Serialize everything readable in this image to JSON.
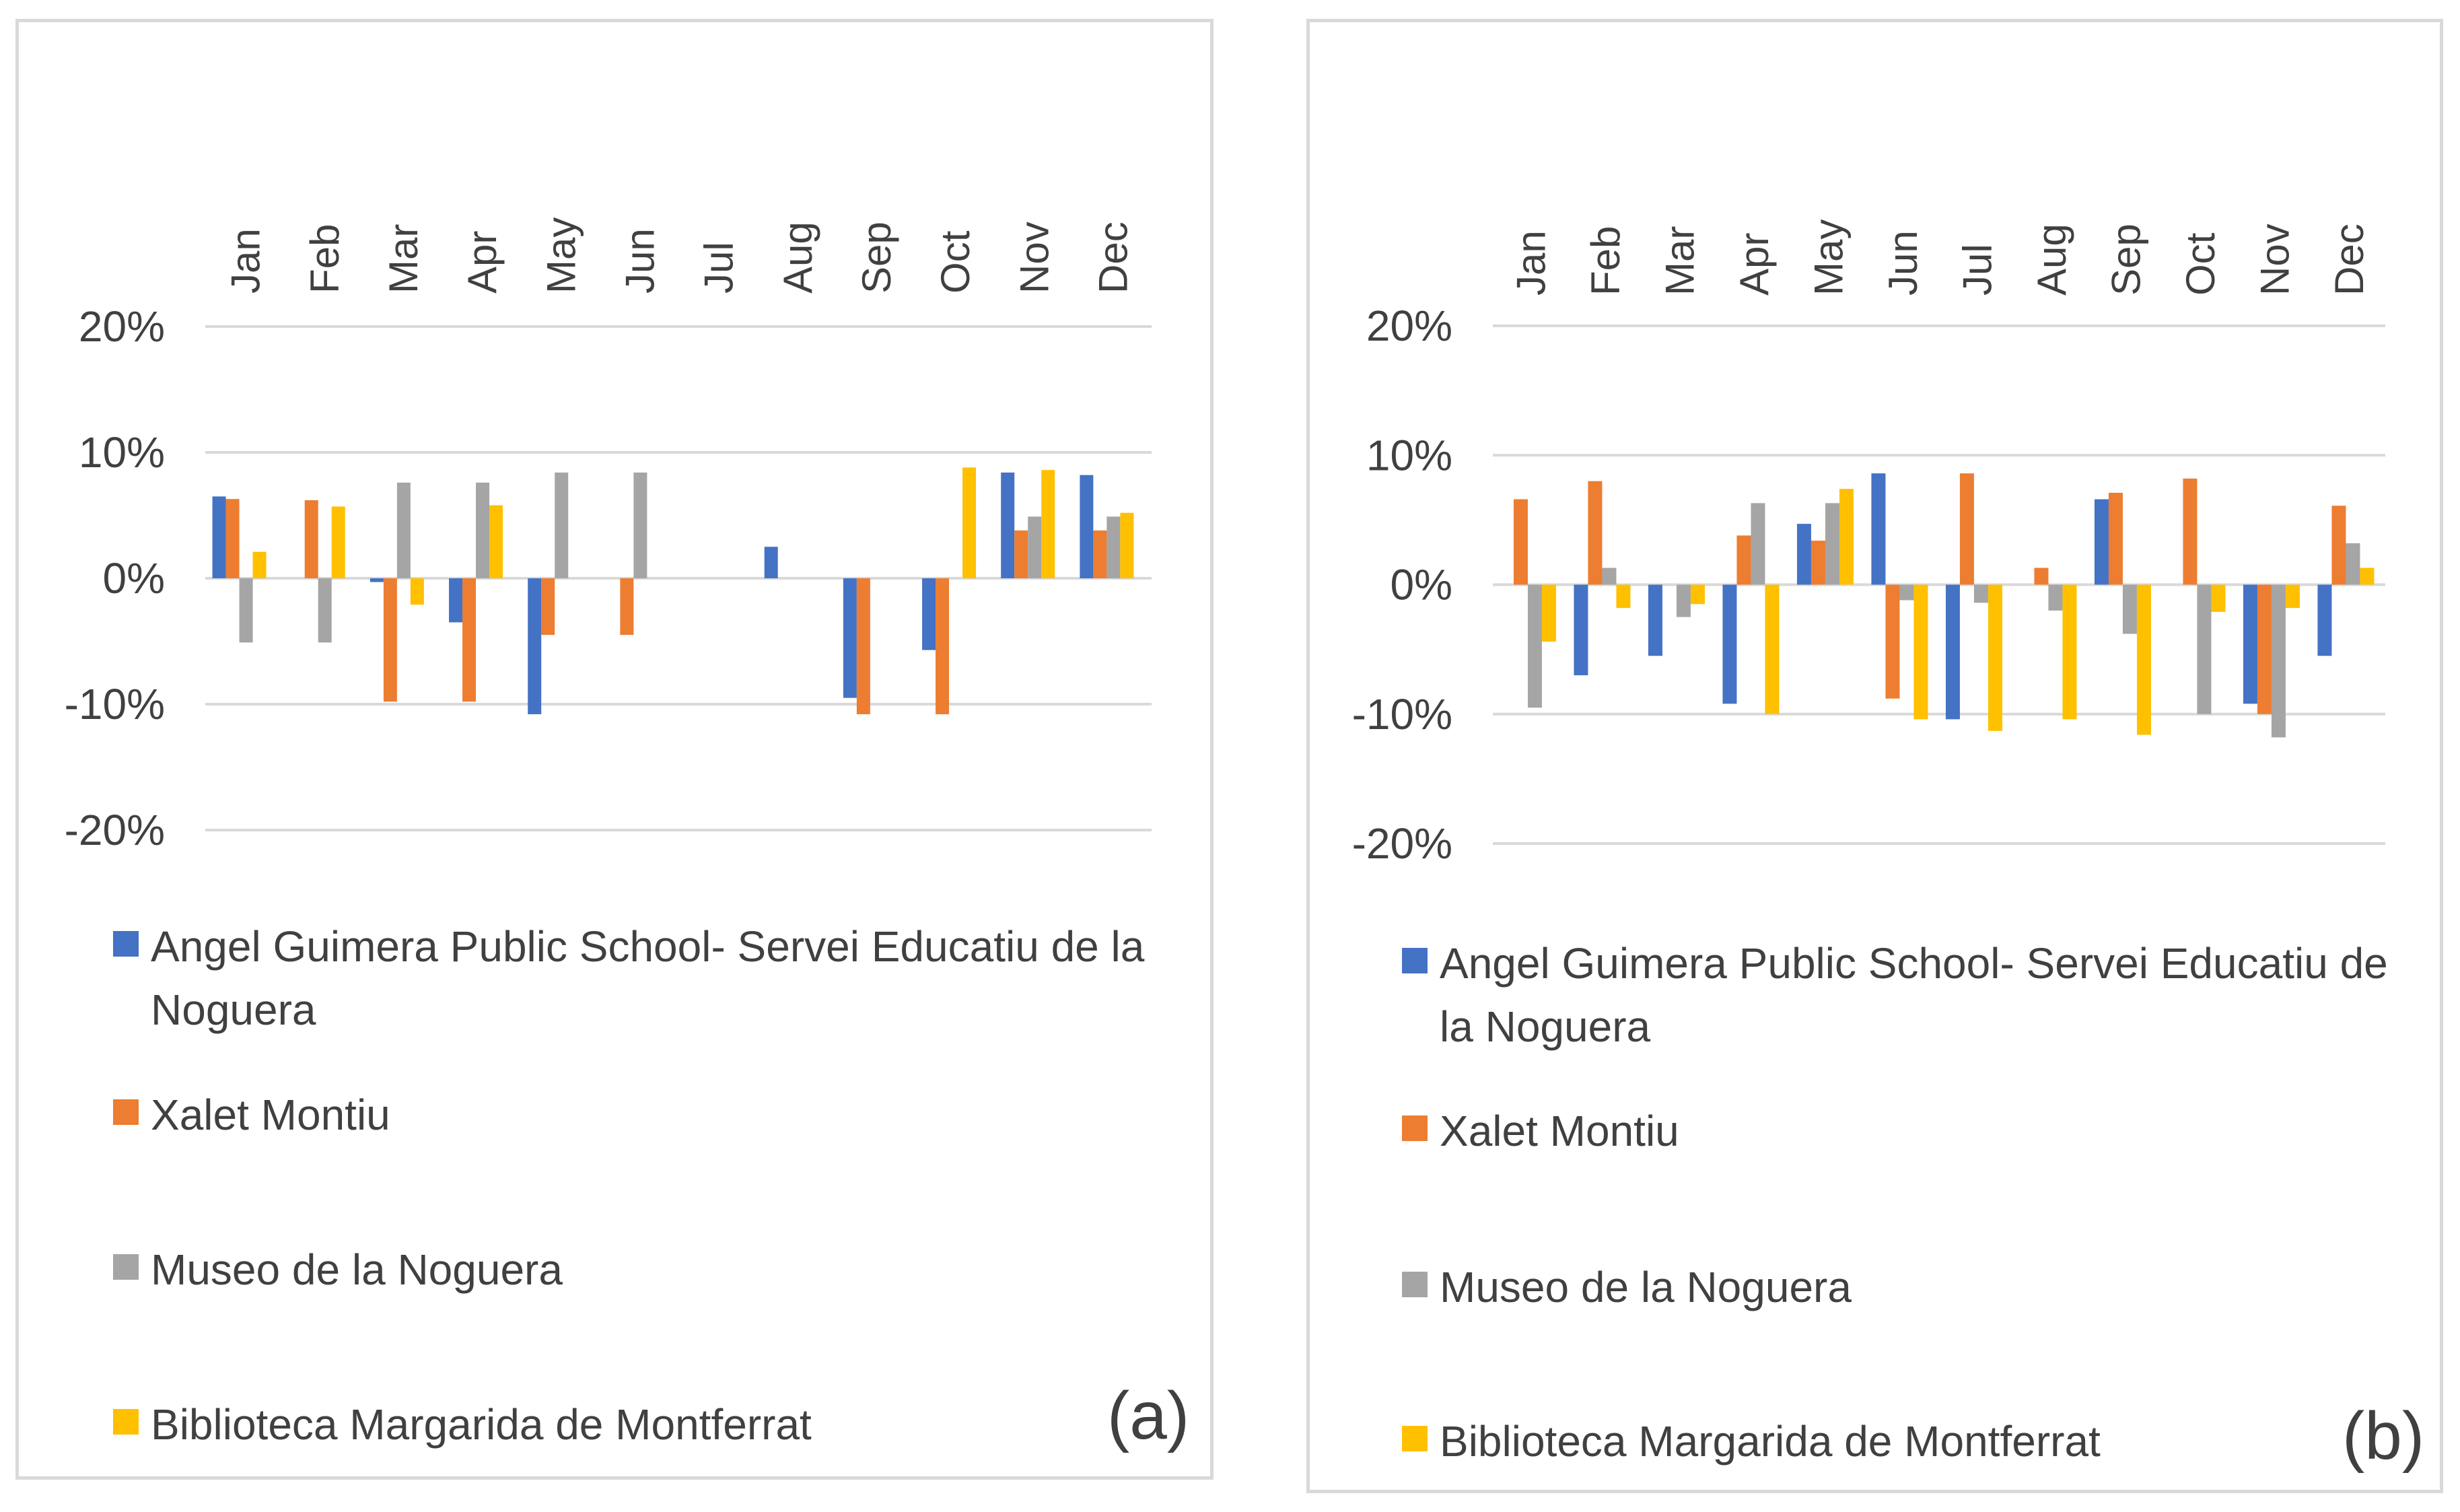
{
  "chart_data": [
    {
      "type": "bar",
      "panel_label": "(a)",
      "categories": [
        "Jan",
        "Feb",
        "Mar",
        "Apr",
        "May",
        "Jun",
        "Jul",
        "Aug",
        "Sep",
        "Oct",
        "Nov",
        "Dec"
      ],
      "ylim": [
        -0.2,
        0.2
      ],
      "yticks": [
        "20%",
        "10%",
        "0%",
        "-10%",
        "-20%"
      ],
      "grid": true,
      "legend_position": "bottom",
      "series": [
        {
          "name": "Angel Guimera Public School- Servei Educatiu de la Noguera",
          "values": [
            0.065,
            0,
            -0.003,
            -0.035,
            -0.108,
            0,
            0,
            0.025,
            -0.095,
            -0.057,
            0.084,
            0.082
          ]
        },
        {
          "name": "Xalet Montiu",
          "values": [
            0.063,
            0.062,
            -0.098,
            -0.098,
            -0.045,
            -0.045,
            0,
            0,
            -0.108,
            -0.108,
            0.038,
            0.038
          ]
        },
        {
          "name": "Museo de la Noguera",
          "values": [
            -0.051,
            -0.051,
            0.076,
            0.076,
            0.084,
            0.084,
            0,
            0,
            0,
            0,
            0.049,
            0.049
          ]
        },
        {
          "name": "Biblioteca Margarida de Montferrat",
          "values": [
            0.021,
            0.057,
            -0.021,
            0.058,
            0,
            0,
            0,
            0,
            0,
            0.088,
            0.086,
            0.052
          ]
        }
      ]
    },
    {
      "type": "bar",
      "panel_label": "(b)",
      "categories": [
        "Jan",
        "Feb",
        "Mar",
        "Apr",
        "May",
        "Jun",
        "Jul",
        "Aug",
        "Sep",
        "Oct",
        "Nov",
        "Dec"
      ],
      "ylim": [
        -0.2,
        0.2
      ],
      "yticks": [
        "20%",
        "10%",
        "0%",
        "-10%",
        "-20%"
      ],
      "grid": true,
      "legend_position": "bottom",
      "series": [
        {
          "name": "Angel Guimera Public School- Servei Educatiu de la Noguera",
          "values": [
            0,
            -0.07,
            -0.055,
            -0.092,
            0.047,
            0.086,
            -0.104,
            0,
            0.066,
            0,
            -0.092,
            -0.055
          ]
        },
        {
          "name": "Xalet Montiu",
          "values": [
            0.066,
            0.08,
            0,
            0.038,
            0.034,
            -0.088,
            0.086,
            0.013,
            0.071,
            0.082,
            -0.1,
            0.061
          ]
        },
        {
          "name": "Museo de la Noguera",
          "values": [
            -0.095,
            0.013,
            -0.025,
            0.063,
            0.063,
            -0.012,
            -0.014,
            -0.02,
            -0.038,
            -0.1,
            -0.118,
            0.032
          ]
        },
        {
          "name": "Biblioteca Margarida de Montferrat",
          "values": [
            -0.044,
            -0.018,
            -0.015,
            -0.1,
            0.074,
            -0.104,
            -0.113,
            -0.104,
            -0.116,
            -0.021,
            -0.018,
            0.013
          ]
        }
      ]
    }
  ],
  "colors": [
    "#4472c4",
    "#ed7d31",
    "#a5a5a5",
    "#ffc000"
  ],
  "grid_color": "#d9d9d9",
  "text_color": "#404040"
}
